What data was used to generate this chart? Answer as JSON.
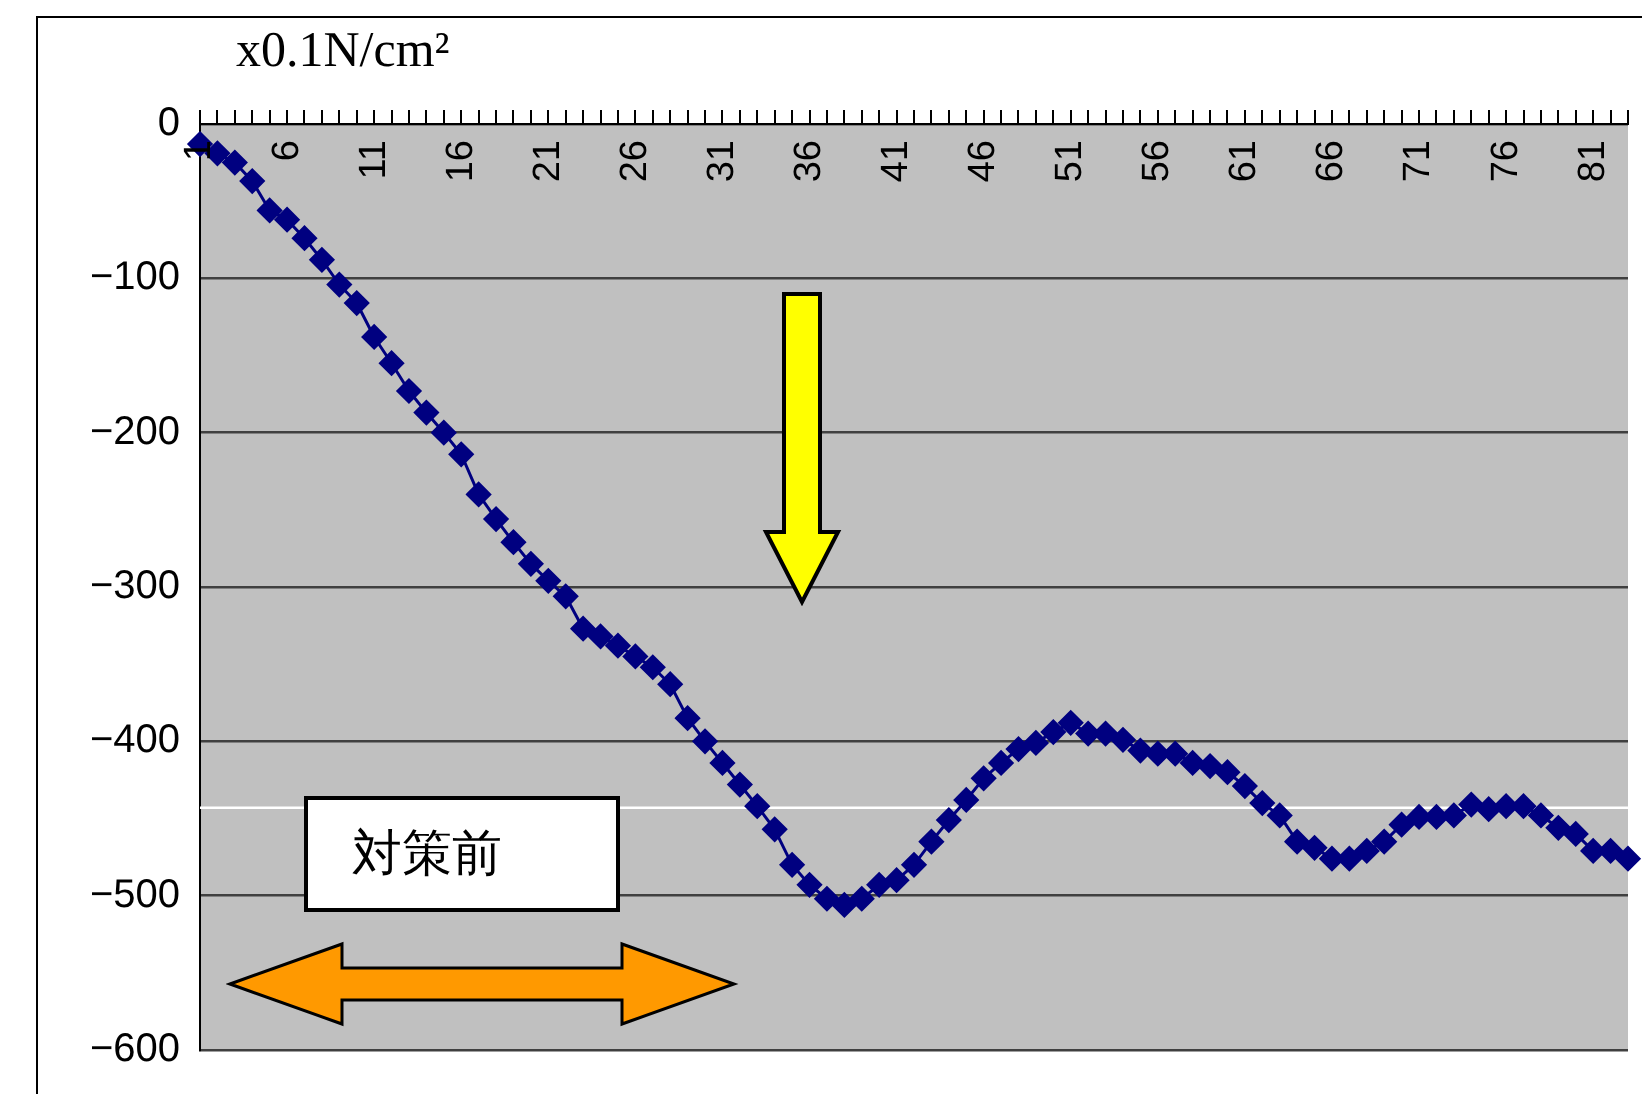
{
  "chart_data": {
    "type": "line",
    "ylabel": "x0.1N/cm²",
    "categories": [
      "1",
      null,
      null,
      null,
      null,
      "6",
      null,
      null,
      null,
      null,
      "11",
      null,
      null,
      null,
      null,
      "16",
      null,
      null,
      null,
      null,
      "21",
      null,
      null,
      null,
      null,
      "26",
      null,
      null,
      null,
      null,
      "31",
      null,
      null,
      null,
      null,
      "36",
      null,
      null,
      null,
      null,
      "41",
      null,
      null,
      null,
      null,
      "46",
      null,
      null,
      null,
      null,
      "51",
      null,
      null,
      null,
      null,
      "56",
      null,
      null,
      null,
      null,
      "61",
      null,
      null,
      null,
      null,
      "66",
      null,
      null,
      null,
      null,
      "71",
      null,
      null,
      null,
      null,
      "76",
      null,
      null,
      null,
      null,
      "81",
      null,
      null
    ],
    "series": [
      {
        "color": "#000080",
        "values": [
          -13,
          -19,
          -25,
          -37,
          -56,
          -62,
          -74,
          -88,
          -104,
          -116,
          -138,
          -155,
          -173,
          -187,
          -200,
          -214,
          -240,
          -256,
          -271,
          -285,
          -296,
          -306,
          -327,
          -332,
          -338,
          -345,
          -352,
          -363,
          -385,
          -400,
          -414,
          -428,
          -442,
          -457,
          -480,
          -493,
          -502,
          -506,
          -502,
          -493,
          -490,
          -480,
          -465,
          -451,
          -438,
          -424,
          -414,
          -405,
          -401,
          -394,
          -388,
          -395,
          -395,
          -399,
          -406,
          -408,
          -408,
          -414,
          -416,
          -420,
          -429,
          -440,
          -448,
          -465,
          -469,
          -476,
          -476,
          -471,
          -465,
          -454,
          -449,
          -449,
          -448,
          -441,
          -444,
          -442,
          -442,
          -448,
          -456,
          -460,
          -471,
          -471,
          -476
        ]
      }
    ],
    "ylim": [
      -600,
      0
    ],
    "yticks": [
      0,
      {
        "value": -100,
        "label": "−100"
      },
      {
        "value": -200,
        "label": "−200"
      },
      {
        "value": -300,
        "label": "−300"
      },
      {
        "value": -400,
        "label": "−400"
      },
      {
        "value": -500,
        "label": "−500"
      },
      {
        "value": -600,
        "label": "−600"
      }
    ],
    "grid": "y",
    "legend": false,
    "marker": "diamond",
    "line_style": "solid",
    "ref_lines": [
      {
        "axis": "y",
        "value": -443,
        "color": "#ffffff"
      }
    ],
    "annotations": [
      "対策前"
    ]
  }
}
